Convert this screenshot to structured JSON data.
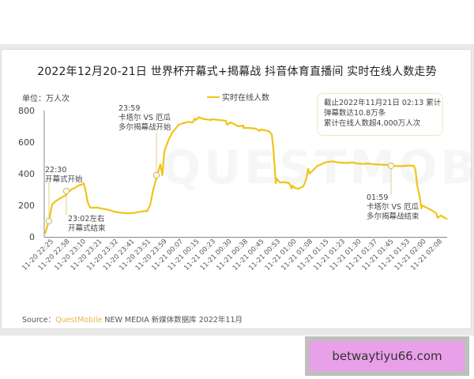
{
  "page": {
    "title": "2022年12月20-21日 世界杯开幕式+揭幕战 抖音体育直播间 实时在线人数走势",
    "unit_label": "单位：万人次",
    "legend_label": "实时在线人数",
    "watermark": "QUESTMOBILE",
    "note_box": {
      "lines": [
        "截止2022年11月21日 02:13 累计",
        "弹幕数达10.8万条",
        "累计在线人数超4,000万人次"
      ]
    },
    "annotations": {
      "a1": {
        "time": "22:30",
        "text": "开幕式开始"
      },
      "a2": {
        "time": "23:02左右",
        "text": "开幕式结束"
      },
      "a3": {
        "time": "23:59",
        "text1": "卡塔尔 VS 厄瓜",
        "text2": "多尔揭幕战开始"
      },
      "a4": {
        "time": "01:59",
        "text1": "卡塔尔 VS 厄瓜",
        "text2": "多尔揭幕战结束"
      }
    },
    "source": {
      "prefix": "Source：",
      "brand": "QuestMobile",
      "rest": "NEW MEDIA 新媒体数据库 2022年11月"
    },
    "ad_text": "betwaytiyu66.com",
    "colors": {
      "line": "#f0c419",
      "brand": "#e8b64a",
      "ad_bg": "#e8a0e8"
    }
  },
  "chart_data": {
    "type": "line",
    "title": "2022年12月20-21日 世界杯开幕式+揭幕战 抖音体育直播间 实时在线人数走势",
    "xlabel": "",
    "ylabel": "万人次",
    "ylim": [
      0,
      800
    ],
    "yticks": [
      0,
      200,
      400,
      600,
      800
    ],
    "grid": false,
    "legend_position": "top-center",
    "categories": [
      "11-20 22:25",
      "11-20 22:58",
      "11-20 23:10",
      "11-20 23:21",
      "11-20 23:32",
      "11-20 23:41",
      "11-20 23:51",
      "11-20 23:59",
      "11-21 00:07",
      "11-21 00:15",
      "11-21 00:23",
      "11-21 00:30",
      "11-21 00:38",
      "11-21 00:45",
      "11-21 00:53",
      "11-21 01:00",
      "11-21 01:08",
      "11-21 01:15",
      "11-21 01:23",
      "11-21 01:30",
      "11-21 01:37",
      "11-21 01:45",
      "11-21 01:53",
      "11-21 02:00",
      "11-21 02:08"
    ],
    "series": [
      {
        "name": "实时在线人数",
        "values": [
          100,
          260,
          330,
          185,
          160,
          150,
          165,
          390,
          710,
          750,
          740,
          710,
          690,
          670,
          340,
          305,
          430,
          470,
          470,
          465,
          460,
          455,
          450,
          180,
          120
        ]
      }
    ],
    "markers": [
      {
        "label": "22:30 开幕式开始",
        "value": 100
      },
      {
        "label": "23:02左右 开幕式结束",
        "value": 290
      },
      {
        "label": "23:59 卡塔尔 VS 厄瓜多尔揭幕战开始",
        "value": 390
      },
      {
        "label": "01:59 卡塔尔 VS 厄瓜多尔揭幕战结束",
        "value": 450
      }
    ]
  }
}
